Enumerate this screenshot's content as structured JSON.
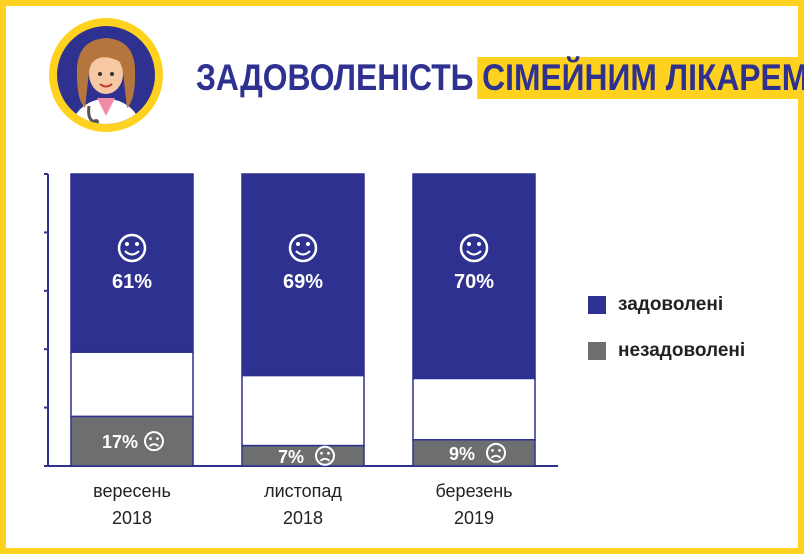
{
  "title": {
    "part1": "ЗАДОВОЛЕНІСТЬ",
    "part2": "СІМЕЙНИМ ЛІКАРЕМ"
  },
  "colors": {
    "frame": "#ffd21f",
    "satisfied": "#2e318f",
    "dissatisfied": "#6d6e70",
    "unknown": "#ffffff",
    "title": "#2e318f"
  },
  "chart_data": {
    "type": "bar",
    "stacked": true,
    "categories": [
      [
        "вересень",
        "2018"
      ],
      [
        "листопад",
        "2018"
      ],
      [
        "березень",
        "2019"
      ]
    ],
    "series": [
      {
        "name": "незадоволені",
        "values": [
          17,
          7,
          9
        ],
        "labels": [
          "17%",
          "7%",
          "9%"
        ],
        "icon": "sad-face-icon"
      },
      {
        "name": "",
        "values": [
          22,
          24,
          21
        ]
      },
      {
        "name": "задоволені",
        "values": [
          61,
          69,
          70
        ],
        "labels": [
          "61%",
          "69%",
          "70%"
        ],
        "icon": "smile-face-icon"
      }
    ],
    "ylim": [
      0,
      100
    ],
    "grid": false,
    "legend_position": "right"
  }
}
